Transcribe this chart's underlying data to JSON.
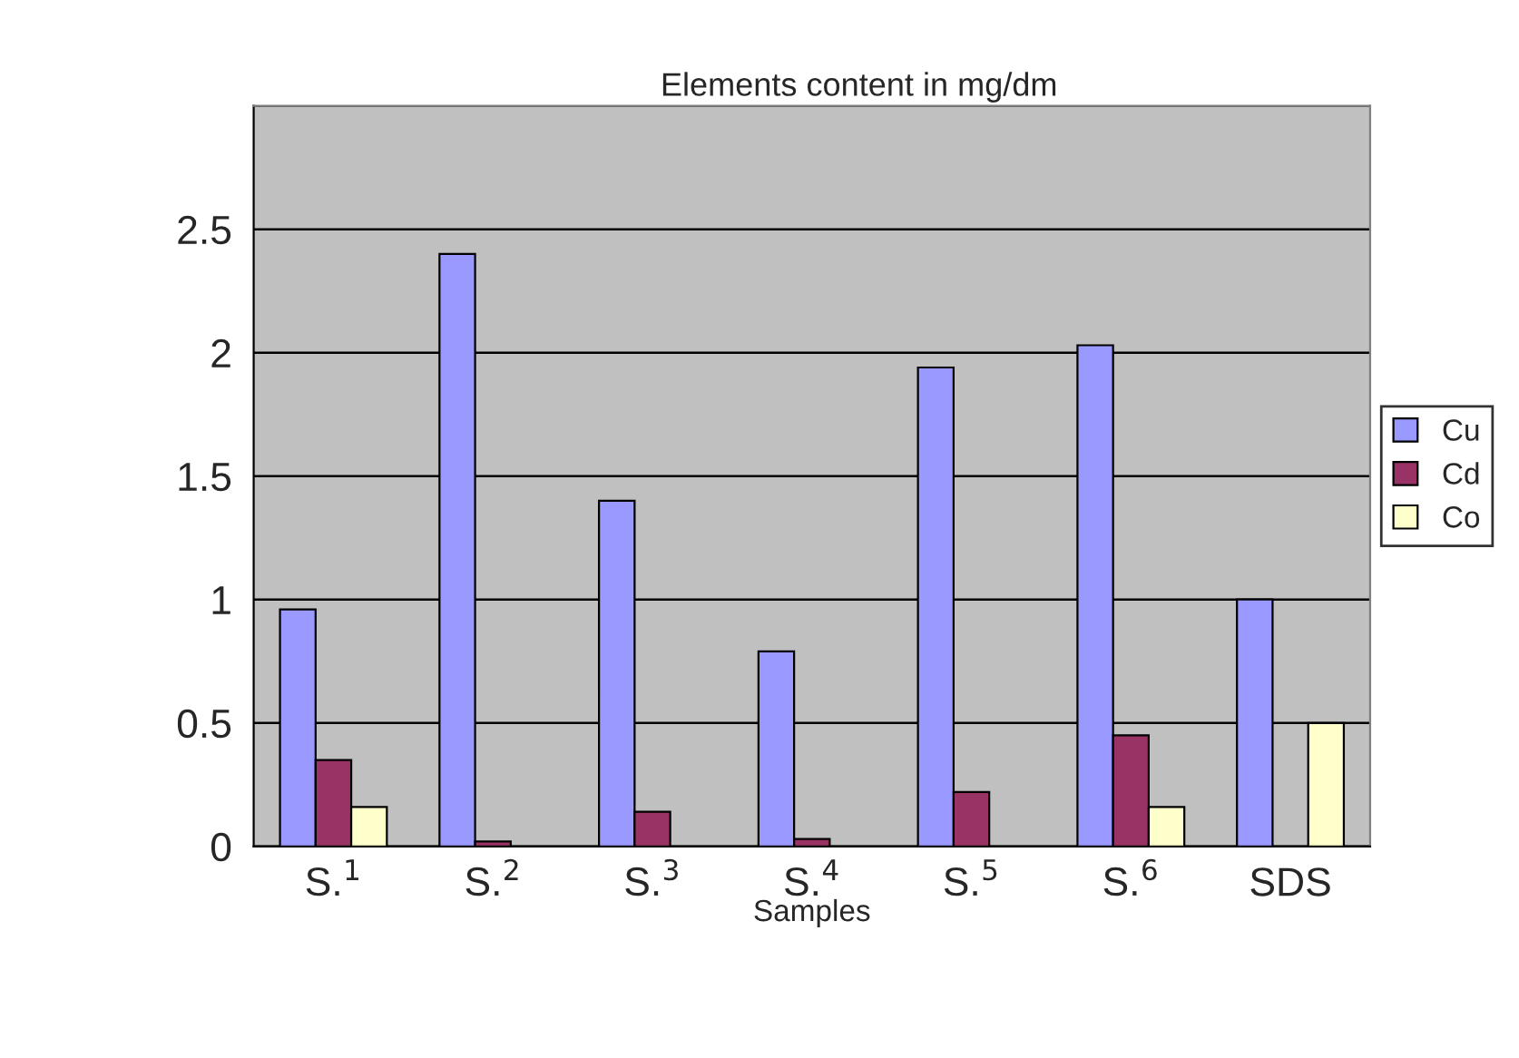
{
  "chart_data": {
    "type": "bar",
    "title": "Elements content in mg/dm",
    "xlabel": "Samples",
    "categories": [
      "S.$^{1}$",
      "S.$^{2}$",
      "S.$^{3}$",
      "S.$^{4}$",
      "S.$^{5}$",
      "S.$^{6}$",
      "SDS"
    ],
    "series": [
      {
        "name": "Cu",
        "color": "#9999ff",
        "values": [
          0.96,
          2.4,
          1.4,
          0.79,
          1.94,
          2.03,
          1.0
        ]
      },
      {
        "name": "Cd",
        "color": "#993366",
        "values": [
          0.35,
          0.02,
          0.14,
          0.03,
          0.22,
          0.45,
          null
        ]
      },
      {
        "name": "Co",
        "color": "#ffffcc",
        "values": [
          0.16,
          null,
          null,
          null,
          null,
          0.16,
          0.5
        ]
      }
    ],
    "ylim": [
      0,
      3
    ],
    "yticks": [
      0,
      0.5,
      1,
      1.5,
      2,
      2.5,
      {
        "value": 3,
        "label": null
      }
    ],
    "grid": "y",
    "legend": "right"
  }
}
